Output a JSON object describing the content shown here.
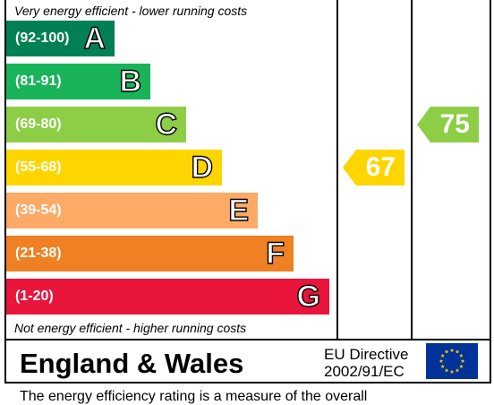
{
  "chart_data": {
    "type": "bar",
    "top_note": "Very energy efficient - lower running costs",
    "bottom_note": "Not energy efficient - higher running costs",
    "bands": [
      {
        "letter": "A",
        "range": "(92-100)",
        "min": 92,
        "max": 100,
        "color": "#008054"
      },
      {
        "letter": "B",
        "range": "(81-91)",
        "min": 81,
        "max": 91,
        "color": "#19b459"
      },
      {
        "letter": "C",
        "range": "(69-80)",
        "min": 69,
        "max": 80,
        "color": "#8dce46"
      },
      {
        "letter": "D",
        "range": "(55-68)",
        "min": 55,
        "max": 68,
        "color": "#ffd500"
      },
      {
        "letter": "E",
        "range": "(39-54)",
        "min": 39,
        "max": 54,
        "color": "#fcaa65"
      },
      {
        "letter": "F",
        "range": "(21-38)",
        "min": 21,
        "max": 38,
        "color": "#ef8023"
      },
      {
        "letter": "G",
        "range": "(1-20)",
        "min": 1,
        "max": 20,
        "color": "#e9153b"
      }
    ],
    "ratings": [
      {
        "value": 67,
        "band": "D",
        "color": "#ffd500"
      },
      {
        "value": 75,
        "band": "C",
        "color": "#8dce46"
      }
    ]
  },
  "footer": {
    "region": "England & Wales",
    "directive_line1": "EU Directive",
    "directive_line2": "2002/91/EC",
    "flag_icon": "eu-flag-icon",
    "flag_color": "#003399",
    "star_color": "#ffcc00"
  },
  "caption": "The energy efficiency rating is a measure of the overall"
}
